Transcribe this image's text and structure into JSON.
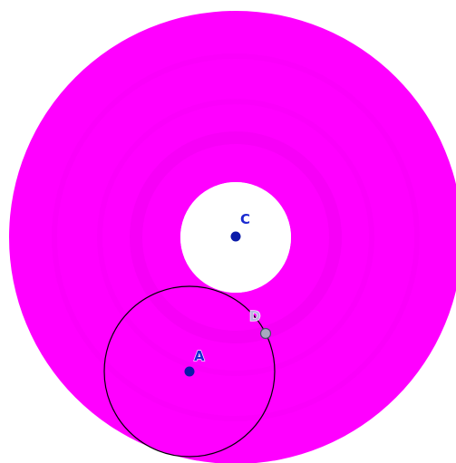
{
  "points": {
    "A": {
      "label": "A"
    },
    "C": {
      "label": "C"
    },
    "D": {
      "label": "D"
    }
  },
  "colors": {
    "disk_fill": "#ff00ff",
    "disk_ring_pattern": "#e600e6",
    "hole_fill": "#ffffff",
    "circle_stroke": "#000000",
    "point_fill": "#0a1aa8",
    "label_a_c": "#1a2ad0",
    "point_d_fill": "#a8a8c0",
    "point_d_stroke": "#4a4a6a",
    "label_d": "#b8b8e0"
  },
  "icons": {
    "point_marker": "filled-dot",
    "glider_marker": "hollow-dot"
  }
}
